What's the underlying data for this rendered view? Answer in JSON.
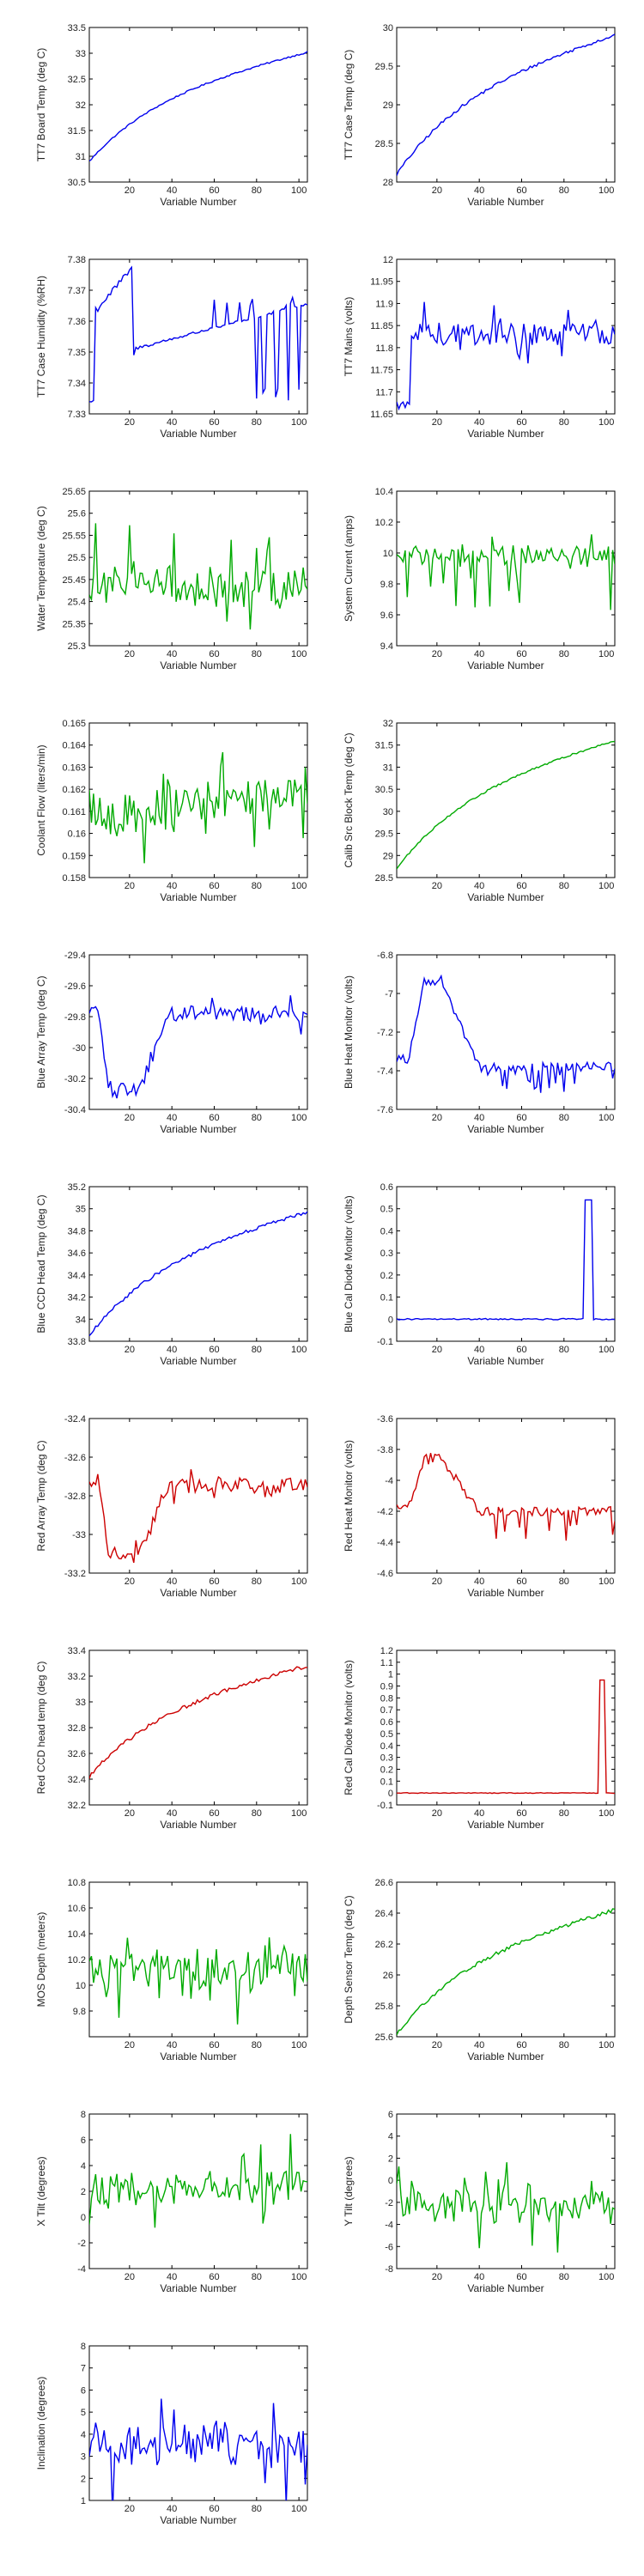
{
  "chart_data": [
    {
      "type": "line",
      "ylabel": "TT7 Board Temp (deg C)",
      "xlabel": "Variable Number",
      "color": "#0000ee",
      "xlim": [
        1,
        104
      ],
      "xticks": [
        20,
        40,
        60,
        80,
        100
      ],
      "ylim": [
        30.5,
        33.5
      ],
      "yticks": [
        "30.5",
        "31",
        "31.5",
        "32",
        "32.5",
        "33",
        "33.5"
      ],
      "shape": "rise",
      "start": 30.9,
      "end": 33.02,
      "noise": 0.015
    },
    {
      "type": "line",
      "ylabel": "TT7 Case Temp (deg C)",
      "xlabel": "Variable Number",
      "color": "#0000ee",
      "xlim": [
        1,
        104
      ],
      "xticks": [
        20,
        40,
        60,
        80,
        100
      ],
      "ylim": [
        28,
        30
      ],
      "yticks": [
        "28",
        "28.5",
        "29",
        "29.5",
        "30"
      ],
      "shape": "rise",
      "start": 28.1,
      "end": 29.9,
      "noise": 0.02
    },
    {
      "type": "line",
      "ylabel": "TT7 Case Humidity (%RH)",
      "xlabel": "Variable Number",
      "color": "#0000ee",
      "xlim": [
        1,
        104
      ],
      "xticks": [
        20,
        40,
        60,
        80,
        100
      ],
      "ylim": [
        7.33,
        7.38
      ],
      "yticks": [
        "7.33",
        "7.34",
        "7.35",
        "7.36",
        "7.37",
        "7.38"
      ],
      "shape": "humidity",
      "noise": 0.0005
    },
    {
      "type": "line",
      "ylabel": "TT7 Mains (volts)",
      "xlabel": "Variable Number",
      "color": "#0000ee",
      "xlim": [
        1,
        104
      ],
      "xticks": [
        20,
        40,
        60,
        80,
        100
      ],
      "ylim": [
        11.65,
        12
      ],
      "yticks": [
        "11.65",
        "11.7",
        "11.75",
        "11.8",
        "11.85",
        "11.9",
        "11.95",
        "12"
      ],
      "shape": "mains",
      "noise": 0.03
    },
    {
      "type": "line",
      "ylabel": "Water Temperature (deg C)",
      "xlabel": "Variable Number",
      "color": "#00aa00",
      "xlim": [
        1,
        104
      ],
      "xticks": [
        20,
        40,
        60,
        80,
        100
      ],
      "ylim": [
        25.3,
        25.65
      ],
      "yticks": [
        "25.3",
        "25.35",
        "25.4",
        "25.45",
        "25.5",
        "25.55",
        "25.6",
        "25.65"
      ],
      "shape": "flat",
      "start": 25.44,
      "end": 25.43,
      "noise": 0.04
    },
    {
      "type": "line",
      "ylabel": "System Current (amps)",
      "xlabel": "Variable Number",
      "color": "#00aa00",
      "xlim": [
        1,
        104
      ],
      "xticks": [
        20,
        40,
        60,
        80,
        100
      ],
      "ylim": [
        9.4,
        10.4
      ],
      "yticks": [
        "9.4",
        "9.6",
        "9.8",
        "10",
        "10.2",
        "10.4"
      ],
      "shape": "flat",
      "start": 9.98,
      "end": 9.98,
      "noise": 0.06,
      "dips": 0.35
    },
    {
      "type": "line",
      "ylabel": "Coolant Flow (liters/min)",
      "xlabel": "Variable Number",
      "color": "#00aa00",
      "xlim": [
        1,
        104
      ],
      "xticks": [
        20,
        40,
        60,
        80,
        100
      ],
      "ylim": [
        0.158,
        0.165
      ],
      "yticks": [
        "0.158",
        "0.159",
        "0.16",
        "0.161",
        "0.162",
        "0.163",
        "0.164",
        "0.165"
      ],
      "shape": "flat",
      "start": 0.1608,
      "end": 0.1618,
      "noise": 0.0009
    },
    {
      "type": "line",
      "ylabel": "Calib Src Block Temp (deg C)",
      "xlabel": "Variable Number",
      "color": "#00aa00",
      "xlim": [
        1,
        104
      ],
      "xticks": [
        20,
        40,
        60,
        80,
        100
      ],
      "ylim": [
        28.5,
        32
      ],
      "yticks": [
        "28.5",
        "29",
        "29.5",
        "30",
        "30.5",
        "31",
        "31.5",
        "32"
      ],
      "shape": "rise",
      "start": 28.7,
      "end": 31.6,
      "noise": 0.02
    },
    {
      "type": "line",
      "ylabel": "Blue Array Temp (deg C)",
      "xlabel": "Variable Number",
      "color": "#0000ee",
      "xlim": [
        1,
        104
      ],
      "xticks": [
        20,
        40,
        60,
        80,
        100
      ],
      "ylim": [
        -30.4,
        -29.4
      ],
      "yticks": [
        "-30.4",
        "-30.2",
        "-30",
        "-29.8",
        "-29.6",
        "-29.4"
      ],
      "shape": "arraytemp",
      "low": -30.3,
      "high": -29.78,
      "noise": 0.05
    },
    {
      "type": "line",
      "ylabel": "Blue Heat Monitor (volts)",
      "xlabel": "Variable Number",
      "color": "#0000ee",
      "xlim": [
        1,
        104
      ],
      "xticks": [
        20,
        40,
        60,
        80,
        100
      ],
      "ylim": [
        -7.6,
        -6.8
      ],
      "yticks": [
        "-7.6",
        "-7.4",
        "-7.2",
        "-7",
        "-6.8"
      ],
      "shape": "heat",
      "low": -7.38,
      "high": -6.93,
      "noise": 0.04
    },
    {
      "type": "line",
      "ylabel": "Blue CCD Head Temp (deg C)",
      "xlabel": "Variable Number",
      "color": "#0000ee",
      "xlim": [
        1,
        104
      ],
      "xticks": [
        20,
        40,
        60,
        80,
        100
      ],
      "ylim": [
        33.8,
        35.2
      ],
      "yticks": [
        "33.8",
        "34",
        "34.2",
        "34.4",
        "34.6",
        "34.8",
        "35",
        "35.2"
      ],
      "shape": "rise",
      "start": 33.85,
      "end": 34.97,
      "noise": 0.015
    },
    {
      "type": "line",
      "ylabel": "Blue Cal Diode Monitor (volts)",
      "xlabel": "Variable Number",
      "color": "#0000ee",
      "xlim": [
        1,
        104
      ],
      "xticks": [
        20,
        40,
        60,
        80,
        100
      ],
      "ylim": [
        -0.1,
        0.6
      ],
      "yticks": [
        "-0.1",
        "0",
        "0.1",
        "0.2",
        "0.3",
        "0.4",
        "0.5",
        "0.6"
      ],
      "shape": "pulse",
      "base": 0,
      "peak": 0.54,
      "pstart": 90,
      "pend": 93
    },
    {
      "type": "line",
      "ylabel": "Red Array Temp (deg C)",
      "xlabel": "Variable Number",
      "color": "#cc0000",
      "xlim": [
        1,
        104
      ],
      "xticks": [
        20,
        40,
        60,
        80,
        100
      ],
      "ylim": [
        -33.2,
        -32.4
      ],
      "yticks": [
        "-33.2",
        "-33",
        "-32.8",
        "-32.6",
        "-32.4"
      ],
      "shape": "arraytemp",
      "low": -33.12,
      "high": -32.75,
      "noise": 0.04
    },
    {
      "type": "line",
      "ylabel": "Red Heat Monitor (volts)",
      "xlabel": "Variable Number",
      "color": "#cc0000",
      "xlim": [
        1,
        104
      ],
      "xticks": [
        20,
        40,
        60,
        80,
        100
      ],
      "ylim": [
        -4.6,
        -3.6
      ],
      "yticks": [
        "-4.6",
        "-4.4",
        "-4.2",
        "-4",
        "-3.8",
        "-3.6"
      ],
      "shape": "heat",
      "low": -4.2,
      "high": -3.86,
      "noise": 0.05
    },
    {
      "type": "line",
      "ylabel": "Red CCD head temp (deg C)",
      "xlabel": "Variable Number",
      "color": "#cc0000",
      "xlim": [
        1,
        104
      ],
      "xticks": [
        20,
        40,
        60,
        80,
        100
      ],
      "ylim": [
        32.2,
        33.4
      ],
      "yticks": [
        "32.2",
        "32.4",
        "32.6",
        "32.8",
        "33",
        "33.2",
        "33.4"
      ],
      "shape": "rise",
      "start": 32.42,
      "end": 33.28,
      "noise": 0.015
    },
    {
      "type": "line",
      "ylabel": "Red Cal Diode Monitor (volts)",
      "xlabel": "Variable Number",
      "color": "#cc0000",
      "xlim": [
        1,
        104
      ],
      "xticks": [
        20,
        40,
        60,
        80,
        100
      ],
      "ylim": [
        -0.1,
        1.2
      ],
      "yticks": [
        "-0.1",
        "0",
        "0.1",
        "0.2",
        "0.3",
        "0.4",
        "0.5",
        "0.6",
        "0.7",
        "0.8",
        "0.9",
        "1",
        "1.1",
        "1.2"
      ],
      "shape": "pulse",
      "base": 0,
      "peak": 0.95,
      "pstart": 97,
      "pend": 99
    },
    {
      "type": "line",
      "ylabel": "MOS Depth  (meters)",
      "xlabel": "Variable Number",
      "color": "#00aa00",
      "xlim": [
        1,
        104
      ],
      "xticks": [
        20,
        40,
        60,
        80,
        100
      ],
      "ylim": [
        9.6,
        10.8
      ],
      "yticks": [
        "9.8",
        "10",
        "10.2",
        "10.4",
        "10.6",
        "10.8"
      ],
      "shape": "flat",
      "start": 10.12,
      "end": 10.12,
      "noise": 0.18
    },
    {
      "type": "line",
      "ylabel": "Depth Sensor Temp (deg C)",
      "xlabel": "Variable Number",
      "color": "#00aa00",
      "xlim": [
        1,
        104
      ],
      "xticks": [
        20,
        40,
        60,
        80,
        100
      ],
      "ylim": [
        25.6,
        26.6
      ],
      "yticks": [
        "25.6",
        "25.8",
        "26",
        "26.2",
        "26.4",
        "26.6"
      ],
      "shape": "rise",
      "start": 25.62,
      "end": 26.42,
      "noise": 0.012
    },
    {
      "type": "line",
      "ylabel": "X Tilt  (degrees)",
      "xlabel": "Variable Number",
      "color": "#00aa00",
      "xlim": [
        1,
        104
      ],
      "xticks": [
        20,
        40,
        60,
        80,
        100
      ],
      "ylim": [
        -4,
        8
      ],
      "yticks": [
        "-4",
        "-2",
        "0",
        "2",
        "4",
        "6",
        "8"
      ],
      "shape": "flat",
      "start": 2,
      "end": 2.4,
      "noise": 1.2
    },
    {
      "type": "line",
      "ylabel": "Y Tilt  (degrees)",
      "xlabel": "Variable Number",
      "color": "#00aa00",
      "xlim": [
        1,
        104
      ],
      "xticks": [
        20,
        40,
        60,
        80,
        100
      ],
      "ylim": [
        -8,
        6
      ],
      "yticks": [
        "-8",
        "-6",
        "-4",
        "-2",
        "0",
        "2",
        "4",
        "6"
      ],
      "shape": "flat",
      "start": -2,
      "end": -2,
      "noise": 1.5
    },
    {
      "type": "line",
      "ylabel": "Inclination  (degrees)",
      "xlabel": "Variable Number",
      "color": "#0000ee",
      "xlim": [
        1,
        104
      ],
      "xticks": [
        20,
        40,
        60,
        80,
        100
      ],
      "ylim": [
        1,
        8
      ],
      "yticks": [
        "1",
        "2",
        "3",
        "4",
        "5",
        "6",
        "7",
        "8"
      ],
      "shape": "flat",
      "start": 3.4,
      "end": 3.6,
      "noise": 0.9
    }
  ]
}
